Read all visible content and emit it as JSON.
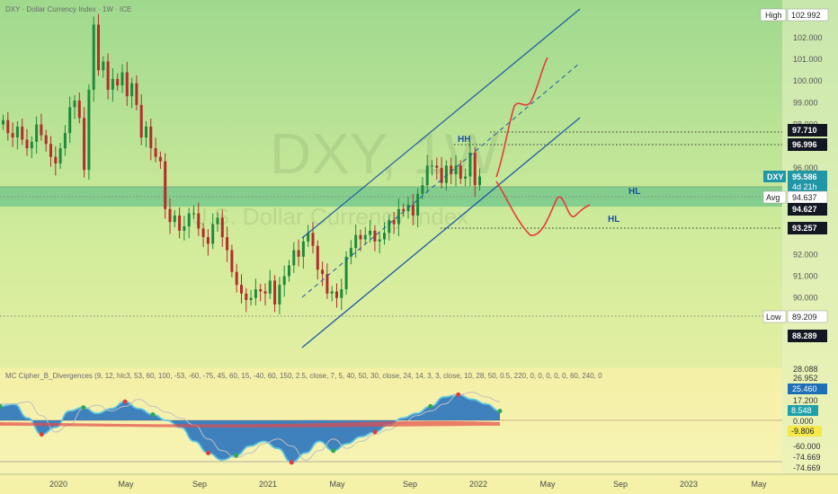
{
  "legend": {
    "symbol_line": "DXY · Dollar Currency Index · 1W · ICE",
    "indicator_line": "MC Cipher_B_Divergences (9, 12, hlc3, 53, 60, 100, -53, -60, -75, 45, 60, 15, -40, 60, 150, 2.5, close, 7, 5, 40, 50, 30, close, 24, 14, 3, 3, close, 10, 28, 50, 0.5, 220, 0, 0, 0, 0, 0, 60, 240, 0"
  },
  "watermark": {
    "symbol": "DXY, 1W",
    "name": "U.S. Dollar Currency Index"
  },
  "annotations": {
    "hh": "HH",
    "hl1": "HL",
    "hl2": "HL"
  },
  "price_tags": {
    "high": {
      "label": "High",
      "value": "102.992"
    },
    "p97710": {
      "value": "97.710",
      "color": "#131722"
    },
    "p96996": {
      "value": "96.996",
      "color": "#131722"
    },
    "dxy": {
      "label": "DXY",
      "value": "95.586",
      "countdown": "4d 21h",
      "color": "#2196a6"
    },
    "avg": {
      "label": "Avg",
      "value": "94.637"
    },
    "p94627": {
      "value": "94.627",
      "color": "#131722"
    },
    "p93257": {
      "value": "93.257",
      "color": "#131722"
    },
    "low": {
      "label": "Low",
      "value": "89.209"
    },
    "p88289": {
      "value": "88.289",
      "color": "#131722"
    }
  },
  "osc_tags": {
    "t1": {
      "value": "28.088"
    },
    "t2": {
      "value": "26.952"
    },
    "t3": {
      "value": "25.460",
      "color": "#1e6fb5"
    },
    "t4": {
      "value": "17.200"
    },
    "t5": {
      "value": "8.548",
      "color": "#1ea0a8"
    },
    "t6": {
      "value": "0.000"
    },
    "t7": {
      "value": "-9.806",
      "color": "#f5e84a"
    },
    "t8": {
      "value": "-60.000"
    },
    "t9": {
      "value": "-74.669"
    },
    "t10": {
      "value": "-74.669"
    }
  },
  "chart_data": {
    "type": "candlestick",
    "title": "U.S. Dollar Currency Index",
    "symbol": "DXY",
    "interval": "1W",
    "y_ticks": [
      "102.000",
      "101.000",
      "100.000",
      "99.000",
      "98.000",
      "96.000",
      "92.000",
      "91.000",
      "90.000"
    ],
    "ylim": [
      87.8,
      103.4
    ],
    "x_ticks": [
      "2020",
      "May",
      "Sep",
      "2021",
      "May",
      "Sep",
      "2022",
      "May",
      "Sep",
      "2023",
      "May"
    ],
    "zone": {
      "from": 94.637,
      "to": 95.49,
      "color": "#6cc58a"
    },
    "levels": [
      {
        "value": 96.996,
        "style": "dotted"
      },
      {
        "value": 94.637,
        "style": "dotted"
      },
      {
        "value": 93.257,
        "style": "dotted"
      },
      {
        "value": 89.209,
        "style": "dotted"
      },
      {
        "value": 97.71,
        "style": "dotted"
      }
    ],
    "channel": {
      "start": "2021-06",
      "end": "2022-09",
      "lower_start": 88.3,
      "lower_end": 98.3,
      "upper_start": 93.0,
      "upper_end": 104.0,
      "mid_start": 90.2,
      "mid_end": 101.0
    },
    "projection": {
      "up": [
        [
          "2022-02",
          95.6
        ],
        [
          "2022-04",
          98.7
        ],
        [
          "2022-05",
          98.9
        ],
        [
          "2022-06",
          101.0
        ]
      ],
      "down": [
        [
          "2022-02",
          95.6
        ],
        [
          "2022-04",
          93.2
        ],
        [
          "2022-06",
          94.2
        ],
        [
          "2022-07",
          94.3
        ],
        [
          "2022-09",
          94.3
        ]
      ]
    },
    "oscillator": {
      "range": [
        -80,
        30
      ],
      "zero": 0,
      "series": [
        {
          "name": "wave",
          "values": [
            12,
            14,
            2,
            -12,
            -6,
            8,
            11,
            6,
            10,
            16,
            10,
            5,
            0,
            -6,
            -18,
            -28,
            -34,
            -30,
            -22,
            -18,
            -24,
            -36,
            -28,
            -18,
            -26,
            -20,
            -14,
            -10,
            -4,
            2,
            6,
            12,
            20,
            22,
            18,
            14,
            8
          ]
        }
      ]
    }
  }
}
